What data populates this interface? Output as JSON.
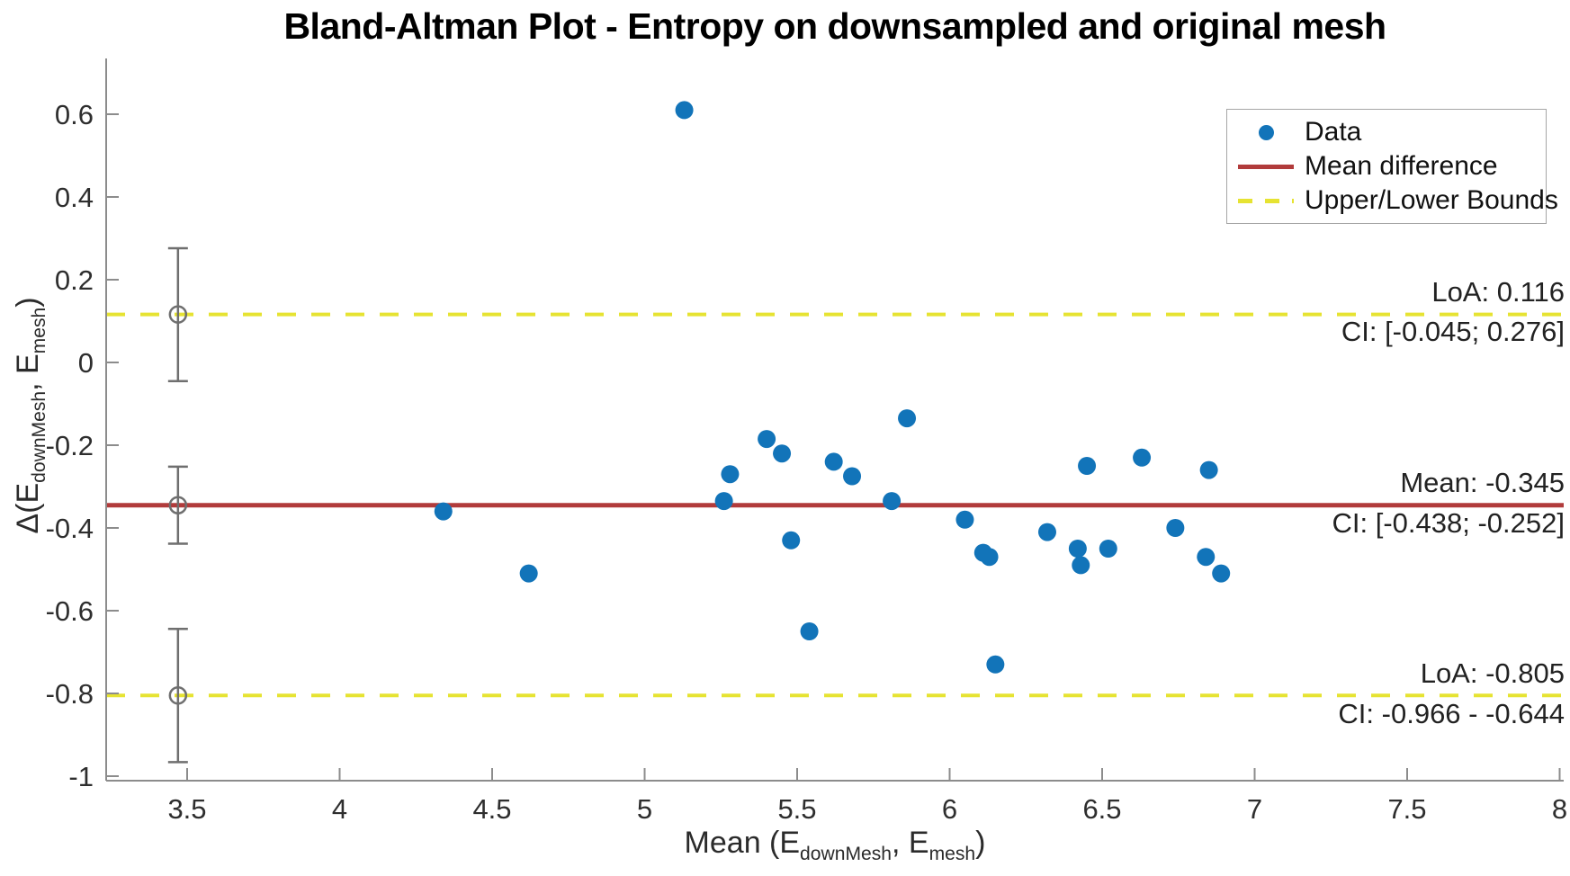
{
  "chart_data": {
    "type": "scatter",
    "title": "Bland-Altman Plot - Entropy on downsampled and original mesh",
    "xlabel": "Mean (E_downMesh, E_mesh)",
    "ylabel": "Δ(E_downMesh, E_mesh)",
    "xlabel_parts": [
      {
        "text": "Mean (E"
      },
      {
        "sub": "downMesh"
      },
      {
        "text": ", E"
      },
      {
        "sub": "mesh"
      },
      {
        "text": ")"
      }
    ],
    "ylabel_parts": [
      {
        "text": "Δ(E"
      },
      {
        "sub": "downMesh"
      },
      {
        "text": ", E"
      },
      {
        "sub": "mesh"
      },
      {
        "text": ")"
      }
    ],
    "xlim": [
      3.22,
      8.0
    ],
    "ylim": [
      -1.01,
      0.73
    ],
    "grid": false,
    "legend_position": "top-right",
    "x_ticks": [
      3.5,
      4,
      4.5,
      5,
      5.5,
      6,
      6.5,
      7,
      7.5,
      8
    ],
    "x_tick_labels": [
      "3.5",
      "4",
      "4.5",
      "5",
      "5.5",
      "6",
      "6.5",
      "7",
      "7.5",
      "8"
    ],
    "y_ticks": [
      0.6,
      0.4,
      0.2,
      0,
      -0.2,
      -0.4,
      -0.6,
      -0.8,
      -1
    ],
    "y_tick_labels": [
      "0.6",
      "0.4",
      "0.2",
      "0",
      "-0.2",
      "-0.4",
      "-0.6",
      "-0.8",
      "-1"
    ],
    "points": [
      [
        5.13,
        0.61
      ],
      [
        4.34,
        -0.36
      ],
      [
        4.62,
        -0.51
      ],
      [
        5.26,
        -0.335
      ],
      [
        5.28,
        -0.27
      ],
      [
        5.4,
        -0.185
      ],
      [
        5.45,
        -0.22
      ],
      [
        5.48,
        -0.43
      ],
      [
        5.54,
        -0.65
      ],
      [
        5.62,
        -0.24
      ],
      [
        5.68,
        -0.275
      ],
      [
        5.81,
        -0.335
      ],
      [
        5.86,
        -0.135
      ],
      [
        6.05,
        -0.38
      ],
      [
        6.11,
        -0.46
      ],
      [
        6.13,
        -0.47
      ],
      [
        6.15,
        -0.73
      ],
      [
        6.32,
        -0.41
      ],
      [
        6.42,
        -0.45
      ],
      [
        6.43,
        -0.49
      ],
      [
        6.45,
        -0.25
      ],
      [
        6.52,
        -0.45
      ],
      [
        6.63,
        -0.23
      ],
      [
        6.74,
        -0.4
      ],
      [
        6.85,
        -0.26
      ],
      [
        6.84,
        -0.47
      ],
      [
        6.89,
        -0.51
      ]
    ],
    "mean_line": {
      "value": -0.345,
      "ci": [
        -0.438,
        -0.252
      ],
      "label": "Mean: -0.345",
      "ci_label": "CI: [-0.438; -0.252]"
    },
    "upper_loa": {
      "value": 0.116,
      "ci": [
        -0.045,
        0.276
      ],
      "label": "LoA: 0.116",
      "ci_label": "CI: [-0.045; 0.276]"
    },
    "lower_loa": {
      "value": -0.805,
      "ci": [
        -0.966,
        -0.644
      ],
      "label": "LoA: -0.805",
      "ci_label": "CI: -0.966 - -0.644"
    },
    "error_bar_x": 3.47,
    "legend": [
      {
        "label": "Data",
        "marker": "dot"
      },
      {
        "label": "Mean difference",
        "marker": "line"
      },
      {
        "label": "Upper/Lower Bounds",
        "marker": "dashed"
      }
    ],
    "colors": {
      "data": "#1274b9",
      "mean": "#b13b3b",
      "bounds": "#e6e332",
      "axis": "#8c8c8c",
      "tick_text": "#2e2e2e",
      "error_bar": "#6f6f6f"
    }
  }
}
